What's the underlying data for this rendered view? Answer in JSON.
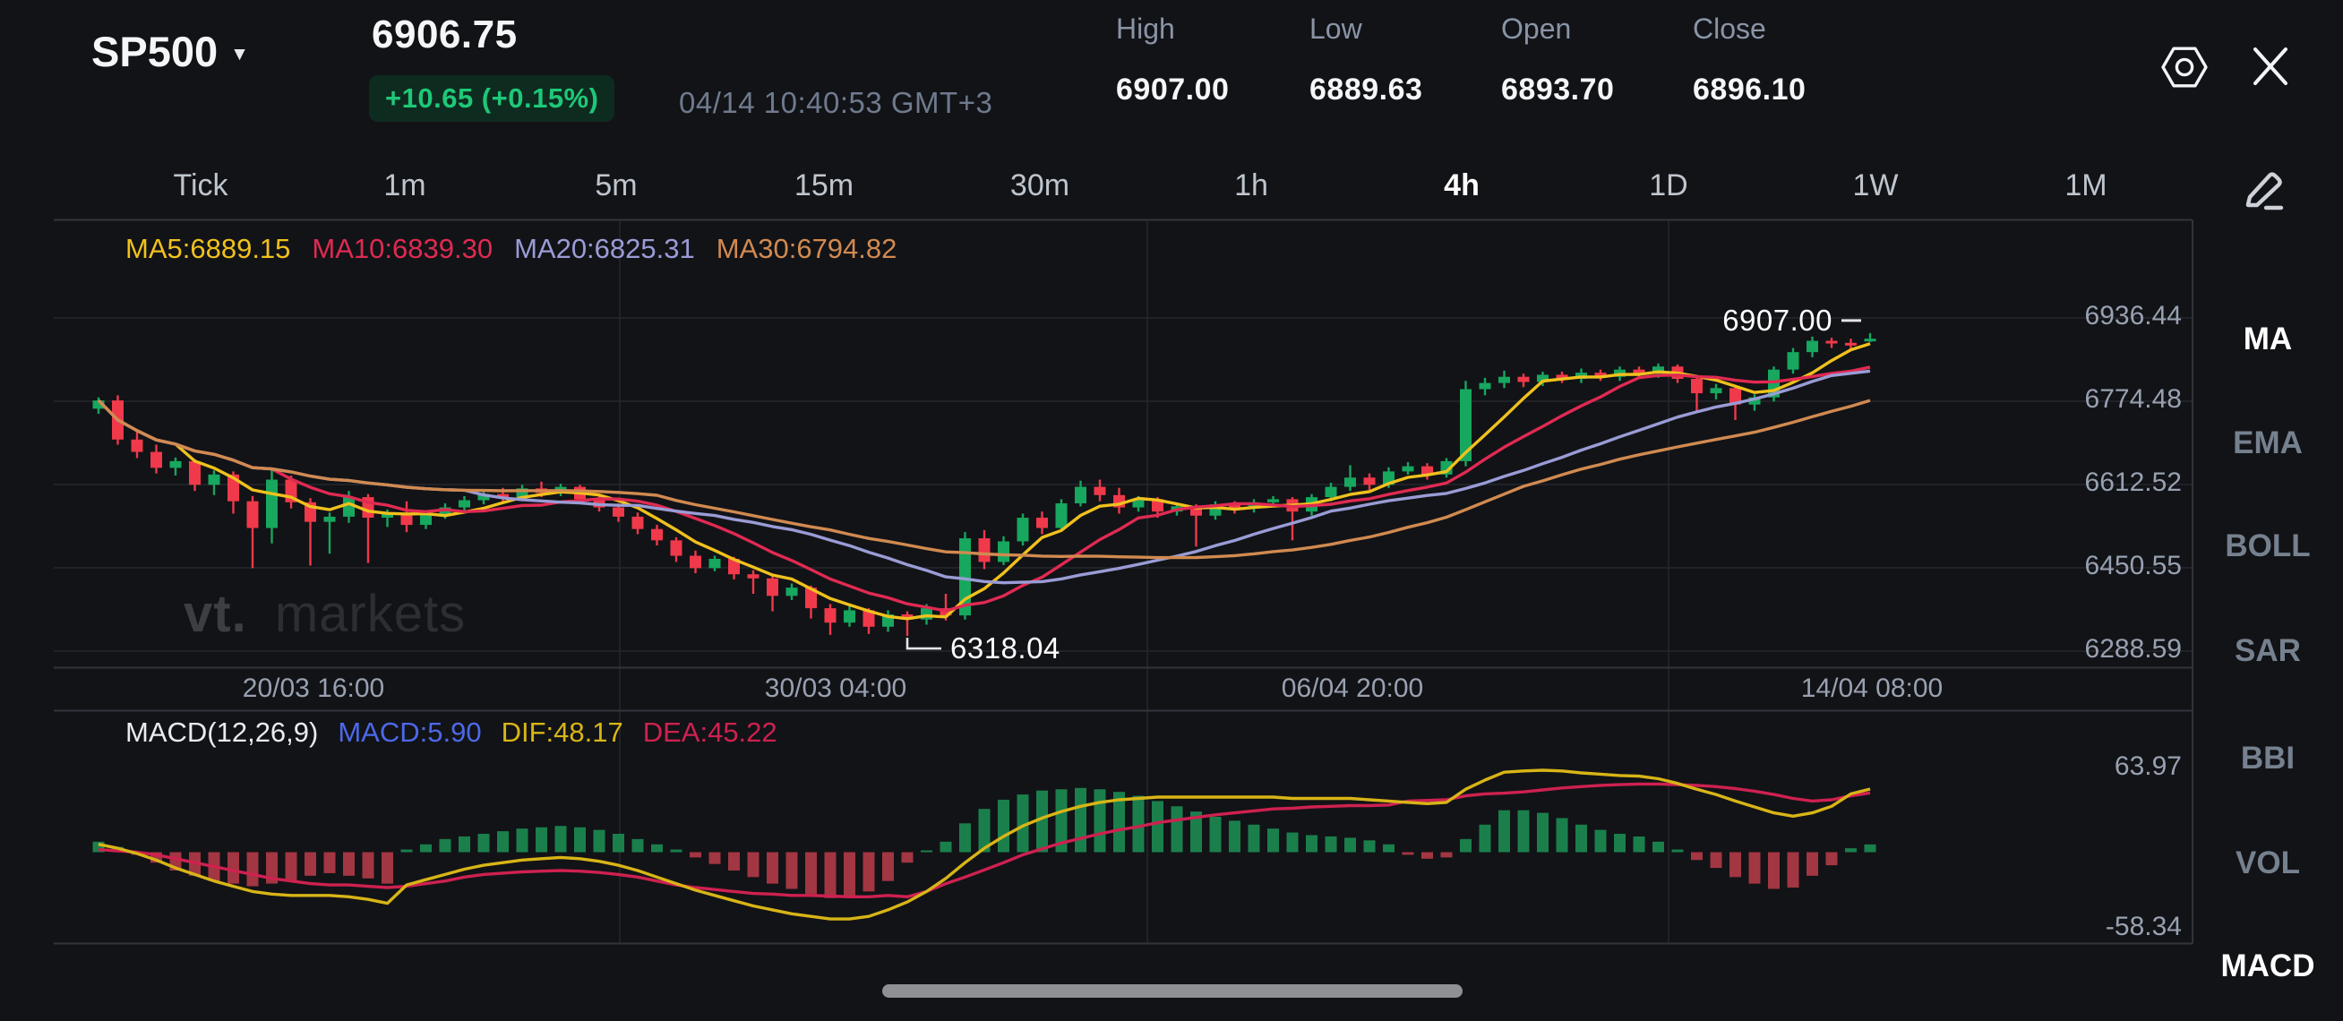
{
  "header": {
    "symbol": "SP500",
    "price": "6906.75",
    "change_badge": "+10.65 (+0.15%)",
    "datetime": "04/14 10:40:53 GMT+3",
    "ohlc": [
      {
        "label": "High",
        "value": "6907.00"
      },
      {
        "label": "Low",
        "value": "6889.63"
      },
      {
        "label": "Open",
        "value": "6893.70"
      },
      {
        "label": "Close",
        "value": "6896.10"
      }
    ]
  },
  "timeframes": {
    "items": [
      "Tick",
      "1m",
      "5m",
      "15m",
      "30m",
      "1h",
      "4h",
      "1D",
      "1W",
      "1M"
    ],
    "active": "4h"
  },
  "sidebar": {
    "items": [
      {
        "label": "MA",
        "active": true
      },
      {
        "label": "EMA",
        "active": false
      },
      {
        "label": "BOLL",
        "active": false
      },
      {
        "label": "SAR",
        "active": false
      },
      {
        "label": "BBI",
        "active": false
      },
      {
        "label": "VOL",
        "active": false
      },
      {
        "label": "MACD",
        "active": true
      }
    ]
  },
  "watermark": {
    "bold": "vt.",
    "light": "markets"
  },
  "colors": {
    "up": "#17a75e",
    "down": "#f0394a",
    "macd_up": "#1b7f4c",
    "macd_down": "#a23642",
    "ma5": "#f0c11d",
    "ma10": "#e02a52",
    "ma20": "#9a9cd6",
    "ma30": "#d18a50",
    "dif_line": "#d8b517",
    "dea_line": "#ce2150",
    "macd_value_blue": "#4d68e8",
    "legend_white": "#e9ebee",
    "badge_text": "#1ec878",
    "badge_bg": "#0e2b1f",
    "grid": "#26282e",
    "border": "#31343b",
    "annotation": "#e2e5e9"
  },
  "chart_data": {
    "type": "candlestick+macd",
    "title": "SP500 4h chart",
    "ma_legend": [
      {
        "text": "MA5:6889.15",
        "color": "#f0c11d"
      },
      {
        "text": "MA10:6839.30",
        "color": "#e02a52"
      },
      {
        "text": "MA20:6825.31",
        "color": "#9a9cd6"
      },
      {
        "text": "MA30:6794.82",
        "color": "#d18a50"
      }
    ],
    "macd_legend": {
      "title": "MACD(12,26,9)",
      "macd": "MACD:5.90",
      "dif": "DIF:48.17",
      "dea": "DEA:45.22"
    },
    "y_axis_labels": [
      "6936.44",
      "6774.48",
      "6612.52",
      "6450.55",
      "6288.59"
    ],
    "x_axis_labels": [
      "20/03 16:00",
      "30/03 04:00",
      "06/04 20:00",
      "14/04 08:00"
    ],
    "macd_axis_labels": [
      "63.97",
      "-58.34"
    ],
    "annotations": {
      "low_label": "6318.04",
      "high_label": "6907.00"
    },
    "ma_periods": [
      5,
      10,
      20,
      30
    ],
    "candles": [
      [
        6760,
        6782,
        6750,
        6776
      ],
      [
        6776,
        6786,
        6690,
        6700
      ],
      [
        6700,
        6716,
        6664,
        6676
      ],
      [
        6676,
        6690,
        6634,
        6645
      ],
      [
        6645,
        6665,
        6630,
        6658
      ],
      [
        6658,
        6662,
        6600,
        6612
      ],
      [
        6612,
        6640,
        6592,
        6632
      ],
      [
        6632,
        6638,
        6556,
        6580
      ],
      [
        6580,
        6590,
        6450,
        6528
      ],
      [
        6528,
        6640,
        6498,
        6622
      ],
      [
        6622,
        6630,
        6566,
        6578
      ],
      [
        6578,
        6586,
        6455,
        6540
      ],
      [
        6540,
        6558,
        6478,
        6550
      ],
      [
        6550,
        6600,
        6538,
        6588
      ],
      [
        6588,
        6594,
        6460,
        6548
      ],
      [
        6548,
        6564,
        6530,
        6556
      ],
      [
        6556,
        6580,
        6520,
        6534
      ],
      [
        6534,
        6562,
        6526,
        6554
      ],
      [
        6554,
        6576,
        6546,
        6568
      ],
      [
        6568,
        6590,
        6560,
        6582
      ],
      [
        6582,
        6600,
        6574,
        6594
      ],
      [
        6594,
        6606,
        6580,
        6588
      ],
      [
        6588,
        6612,
        6582,
        6605
      ],
      [
        6605,
        6618,
        6588,
        6596
      ],
      [
        6596,
        6614,
        6590,
        6608
      ],
      [
        6608,
        6612,
        6576,
        6584
      ],
      [
        6584,
        6592,
        6560,
        6568
      ],
      [
        6568,
        6576,
        6540,
        6550
      ],
      [
        6550,
        6558,
        6516,
        6526
      ],
      [
        6526,
        6534,
        6494,
        6504
      ],
      [
        6504,
        6510,
        6462,
        6474
      ],
      [
        6474,
        6484,
        6440,
        6450
      ],
      [
        6450,
        6474,
        6444,
        6468
      ],
      [
        6468,
        6472,
        6428,
        6438
      ],
      [
        6438,
        6446,
        6400,
        6430
      ],
      [
        6430,
        6438,
        6366,
        6396
      ],
      [
        6396,
        6420,
        6388,
        6412
      ],
      [
        6412,
        6416,
        6352,
        6372
      ],
      [
        6372,
        6380,
        6320,
        6344
      ],
      [
        6344,
        6376,
        6336,
        6368
      ],
      [
        6368,
        6372,
        6322,
        6336
      ],
      [
        6336,
        6368,
        6326,
        6360
      ],
      [
        6360,
        6366,
        6318.04,
        6350
      ],
      [
        6350,
        6380,
        6340,
        6372
      ],
      [
        6372,
        6400,
        6348,
        6358
      ],
      [
        6358,
        6520,
        6350,
        6508
      ],
      [
        6508,
        6524,
        6448,
        6462
      ],
      [
        6462,
        6512,
        6456,
        6502
      ],
      [
        6502,
        6556,
        6494,
        6548
      ],
      [
        6548,
        6560,
        6516,
        6528
      ],
      [
        6528,
        6584,
        6522,
        6576
      ],
      [
        6576,
        6620,
        6570,
        6608
      ],
      [
        6608,
        6622,
        6580,
        6592
      ],
      [
        6592,
        6606,
        6556,
        6568
      ],
      [
        6568,
        6590,
        6560,
        6584
      ],
      [
        6584,
        6588,
        6548,
        6560
      ],
      [
        6560,
        6576,
        6552,
        6570
      ],
      [
        6570,
        6574,
        6492,
        6552
      ],
      [
        6552,
        6580,
        6544,
        6574
      ],
      [
        6574,
        6580,
        6556,
        6566
      ],
      [
        6566,
        6584,
        6558,
        6578
      ],
      [
        6578,
        6590,
        6568,
        6584
      ],
      [
        6584,
        6588,
        6504,
        6560
      ],
      [
        6560,
        6594,
        6552,
        6588
      ],
      [
        6588,
        6616,
        6580,
        6608
      ],
      [
        6608,
        6650,
        6600,
        6626
      ],
      [
        6626,
        6634,
        6602,
        6612
      ],
      [
        6612,
        6646,
        6606,
        6638
      ],
      [
        6638,
        6656,
        6632,
        6648
      ],
      [
        6648,
        6654,
        6622,
        6632
      ],
      [
        6632,
        6664,
        6626,
        6658
      ],
      [
        6658,
        6814,
        6648,
        6798
      ],
      [
        6798,
        6820,
        6786,
        6810
      ],
      [
        6810,
        6834,
        6800,
        6822
      ],
      [
        6822,
        6828,
        6802,
        6812
      ],
      [
        6812,
        6832,
        6804,
        6826
      ],
      [
        6826,
        6832,
        6810,
        6818
      ],
      [
        6818,
        6838,
        6810,
        6830
      ],
      [
        6830,
        6836,
        6814,
        6822
      ],
      [
        6822,
        6842,
        6814,
        6836
      ],
      [
        6836,
        6842,
        6820,
        6828
      ],
      [
        6828,
        6848,
        6820,
        6842
      ],
      [
        6842,
        6846,
        6810,
        6818
      ],
      [
        6818,
        6824,
        6754,
        6790
      ],
      [
        6790,
        6808,
        6778,
        6800
      ],
      [
        6800,
        6806,
        6738,
        6768
      ],
      [
        6768,
        6788,
        6756,
        6782
      ],
      [
        6782,
        6842,
        6774,
        6836
      ],
      [
        6836,
        6878,
        6828,
        6870
      ],
      [
        6870,
        6900,
        6860,
        6892
      ],
      [
        6892,
        6898,
        6878,
        6888
      ],
      [
        6888,
        6896,
        6876,
        6886
      ],
      [
        6893.7,
        6907,
        6889.63,
        6896.1
      ]
    ],
    "dif": [
      6,
      3,
      -1,
      -6,
      -12,
      -17,
      -22,
      -26,
      -30,
      -32,
      -33,
      -33,
      -33,
      -34,
      -36,
      -39,
      -25,
      -21,
      -17,
      -13,
      -10,
      -8,
      -6,
      -5,
      -4,
      -5,
      -7,
      -10,
      -14,
      -19,
      -24,
      -29,
      -33,
      -37,
      -41,
      -44,
      -47,
      -49,
      -51,
      -51,
      -49,
      -44,
      -38,
      -30,
      -20,
      -8,
      3,
      12,
      20,
      26,
      31,
      35,
      38,
      40,
      41,
      42,
      42,
      42,
      42,
      42,
      42,
      42,
      41,
      41,
      41,
      41,
      40,
      39,
      38,
      37,
      38,
      48,
      55,
      61,
      62,
      62.5,
      62,
      60.5,
      59.5,
      58.5,
      58,
      56,
      52.5,
      48,
      44,
      39,
      34.5,
      30,
      27.5,
      30,
      35,
      44.5,
      48.17
    ],
    "dea": [
      2,
      1,
      0,
      -2,
      -5,
      -8,
      -11,
      -14,
      -17,
      -20,
      -22,
      -24,
      -25,
      -25,
      -26,
      -27,
      -26,
      -24,
      -22,
      -19,
      -17,
      -16,
      -15,
      -14.5,
      -14,
      -14.5,
      -15.5,
      -17,
      -19,
      -22,
      -25,
      -27,
      -28.5,
      -30,
      -31.5,
      -32,
      -33,
      -33,
      -33.5,
      -34,
      -34,
      -33,
      -34,
      -30,
      -24,
      -19,
      -13.5,
      -8,
      -2,
      2.5,
      7,
      10.5,
      14,
      17,
      19.5,
      22.5,
      24.5,
      26.5,
      28.5,
      30,
      31.5,
      33,
      33.5,
      34.5,
      35,
      35.5,
      35.5,
      36,
      39,
      39.5,
      40,
      43,
      44.5,
      45,
      46,
      47.5,
      49,
      50,
      51,
      51.5,
      52,
      52,
      51.5,
      51,
      50,
      48.5,
      46.5,
      44,
      41,
      39,
      40,
      43,
      45.22
    ]
  }
}
